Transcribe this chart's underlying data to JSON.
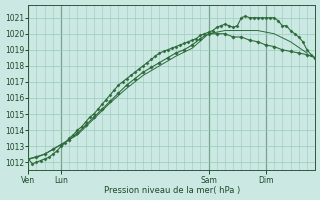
{
  "bg_color": "#cce8e2",
  "grid_color": "#99ccbb",
  "line_color": "#2d6b3c",
  "ylabel": "Pression niveau de la mer( hPa )",
  "ylim": [
    1011.5,
    1021.8
  ],
  "yticks": [
    1012,
    1013,
    1014,
    1015,
    1016,
    1017,
    1018,
    1019,
    1020,
    1021
  ],
  "day_labels": [
    "Ven",
    "Lun",
    "Sam",
    "Dim"
  ],
  "day_positions": [
    0,
    8,
    44,
    58
  ],
  "xlim": [
    0,
    70
  ],
  "series1_x": [
    0,
    1,
    2,
    3,
    4,
    5,
    6,
    7,
    8,
    9,
    10,
    11,
    12,
    13,
    14,
    15,
    16,
    17,
    18,
    19,
    20,
    21,
    22,
    23,
    24,
    25,
    26,
    27,
    28,
    29,
    30,
    31,
    32,
    33,
    34,
    35,
    36,
    37,
    38,
    39,
    40,
    41,
    42,
    43,
    44,
    45,
    46,
    47,
    48,
    49,
    50,
    51,
    52,
    53,
    54,
    55,
    56,
    57,
    58,
    59,
    60,
    61,
    62,
    63,
    64,
    65,
    66,
    67,
    68,
    69,
    70
  ],
  "series1": [
    1012.2,
    1011.9,
    1012.0,
    1012.1,
    1012.2,
    1012.3,
    1012.5,
    1012.7,
    1013.0,
    1013.2,
    1013.5,
    1013.7,
    1014.0,
    1014.2,
    1014.5,
    1014.8,
    1015.0,
    1015.3,
    1015.6,
    1015.9,
    1016.2,
    1016.5,
    1016.8,
    1017.0,
    1017.2,
    1017.4,
    1017.6,
    1017.8,
    1018.0,
    1018.2,
    1018.4,
    1018.6,
    1018.8,
    1018.9,
    1019.0,
    1019.1,
    1019.2,
    1019.3,
    1019.4,
    1019.5,
    1019.6,
    1019.7,
    1019.9,
    1020.0,
    1020.1,
    1020.2,
    1020.4,
    1020.5,
    1020.6,
    1020.5,
    1020.4,
    1020.5,
    1021.0,
    1021.1,
    1021.0,
    1021.0,
    1021.0,
    1021.0,
    1021.0,
    1021.0,
    1021.0,
    1020.8,
    1020.5,
    1020.5,
    1020.2,
    1020.0,
    1019.8,
    1019.5,
    1019.0,
    1018.7,
    1018.5
  ],
  "series2_x": [
    0,
    2,
    4,
    6,
    8,
    10,
    12,
    14,
    16,
    18,
    20,
    22,
    24,
    26,
    28,
    30,
    32,
    34,
    36,
    38,
    40,
    42,
    44,
    46,
    48,
    50,
    52,
    54,
    56,
    58,
    60,
    62,
    64,
    66,
    68,
    70
  ],
  "series2": [
    1012.2,
    1012.3,
    1012.5,
    1012.8,
    1013.1,
    1013.4,
    1013.8,
    1014.3,
    1014.8,
    1015.3,
    1015.8,
    1016.3,
    1016.8,
    1017.2,
    1017.6,
    1017.9,
    1018.2,
    1018.5,
    1018.8,
    1019.0,
    1019.3,
    1019.7,
    1020.0,
    1020.0,
    1020.0,
    1019.8,
    1019.8,
    1019.6,
    1019.5,
    1019.3,
    1019.2,
    1019.0,
    1018.9,
    1018.8,
    1018.7,
    1018.5
  ],
  "series3_x": [
    0,
    4,
    8,
    12,
    16,
    20,
    24,
    28,
    32,
    36,
    40,
    44,
    48,
    52,
    56,
    60,
    64,
    68
  ],
  "series3": [
    1012.2,
    1012.5,
    1013.1,
    1013.7,
    1014.7,
    1015.7,
    1016.6,
    1017.4,
    1018.0,
    1018.6,
    1019.1,
    1020.0,
    1020.2,
    1020.2,
    1020.2,
    1020.0,
    1019.5,
    1018.8
  ]
}
